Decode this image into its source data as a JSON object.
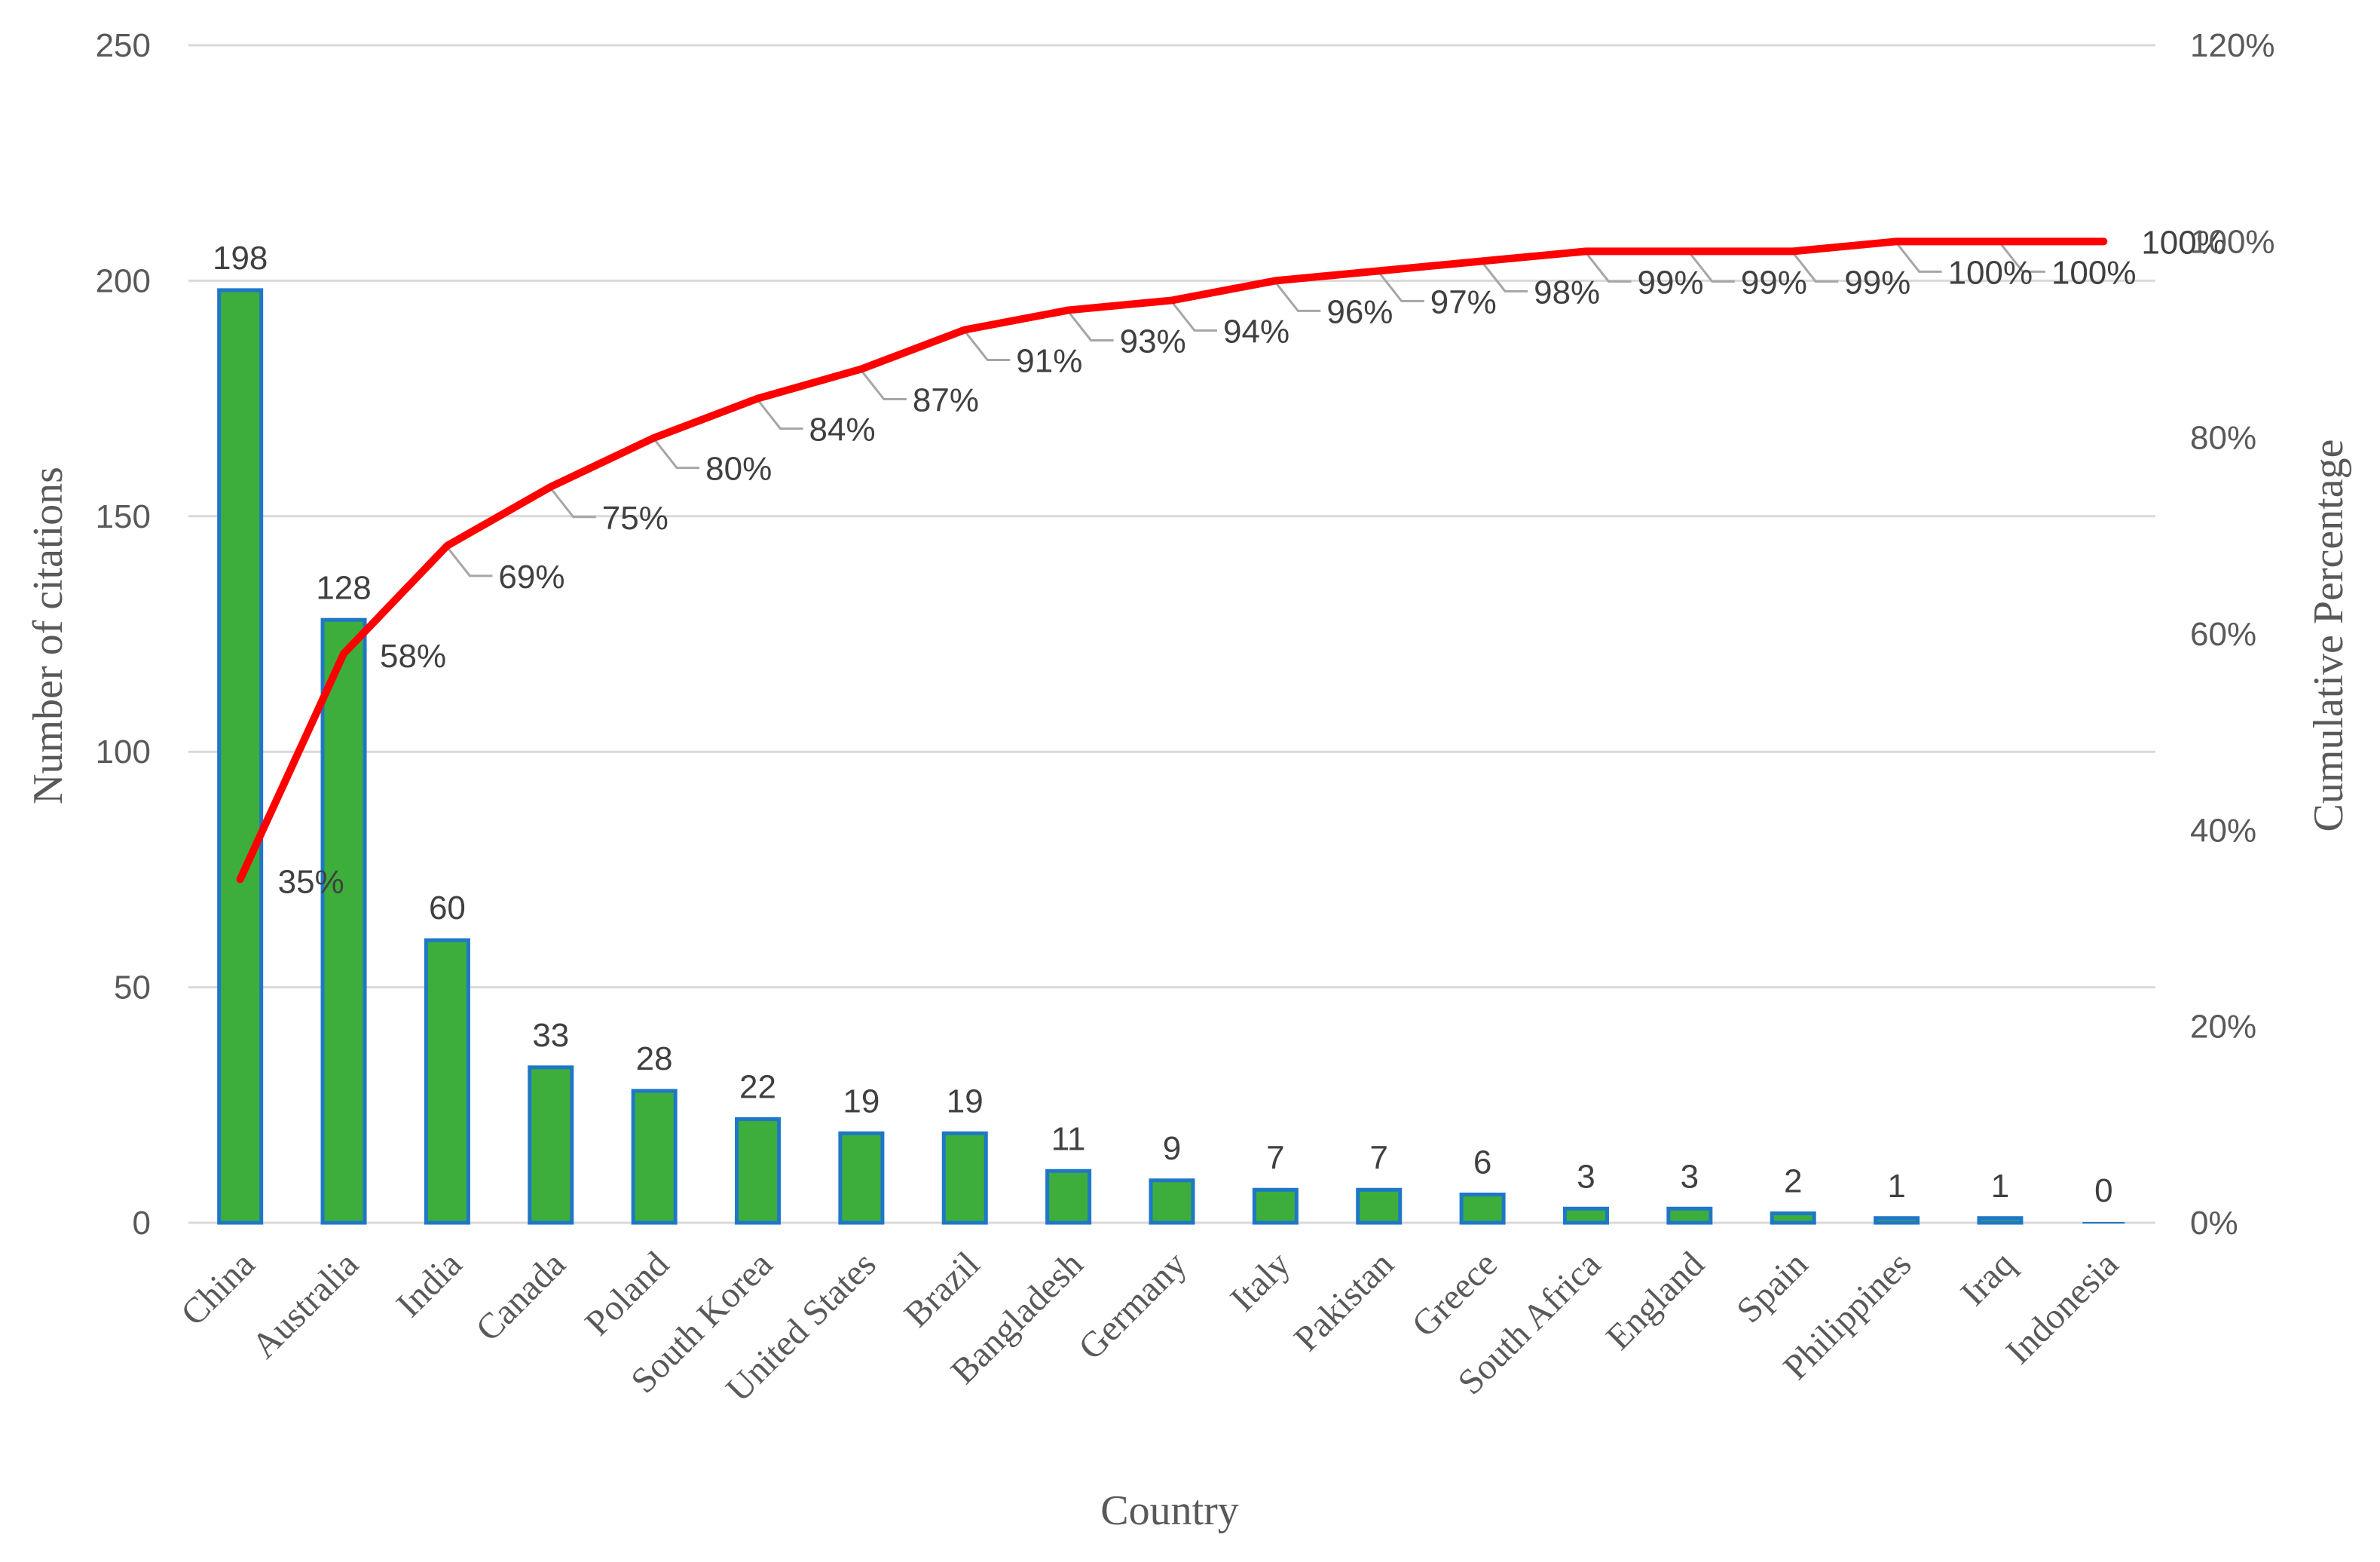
{
  "chart_data": {
    "type": "bar",
    "xlabel": "Country",
    "ylabel": "Number of citations",
    "y2label": "Cumulative Percentage",
    "ylim": [
      0,
      250
    ],
    "y2lim": [
      0,
      1.2
    ],
    "yticks": [
      "0",
      "50",
      "100",
      "150",
      "200",
      "250"
    ],
    "y2ticks": [
      "0%",
      "20%",
      "40%",
      "60%",
      "80%",
      "100%",
      "120%"
    ],
    "grid": true,
    "colors": {
      "bar_fill": "#3DAE3B",
      "bar_edge": "#1F77C8",
      "line": "#FF0000",
      "grid": "#D9D9D9",
      "leader": "#A6A6A6"
    },
    "categories": [
      "China",
      "Australia",
      "India",
      "Canada",
      "Poland",
      "South Korea",
      "United States",
      "Brazil",
      "Bangladesh",
      "Germany",
      "Italy",
      "Pakistan",
      "Greece",
      "South Africa",
      "England",
      "Spain",
      "Philippines",
      "Iraq",
      "Indonesia"
    ],
    "values": [
      198,
      128,
      60,
      33,
      28,
      22,
      19,
      19,
      11,
      9,
      7,
      7,
      6,
      3,
      3,
      2,
      1,
      1,
      0
    ],
    "value_labels": [
      "198",
      "128",
      "60",
      "33",
      "28",
      "22",
      "19",
      "19",
      "11",
      "9",
      "7",
      "7",
      "6",
      "3",
      "3",
      "2",
      "1",
      "1",
      "0"
    ],
    "cumulative": [
      0.35,
      0.58,
      0.69,
      0.75,
      0.8,
      0.84,
      0.87,
      0.91,
      0.93,
      0.94,
      0.96,
      0.97,
      0.98,
      0.99,
      0.99,
      0.99,
      1.0,
      1.0,
      1.0
    ],
    "cumulative_labels": [
      "35%",
      "58%",
      "69%",
      "75%",
      "80%",
      "84%",
      "87%",
      "91%",
      "93%",
      "94%",
      "96%",
      "97%",
      "98%",
      "99%",
      "99%",
      "99%",
      "100%",
      "100%",
      "100%"
    ]
  }
}
